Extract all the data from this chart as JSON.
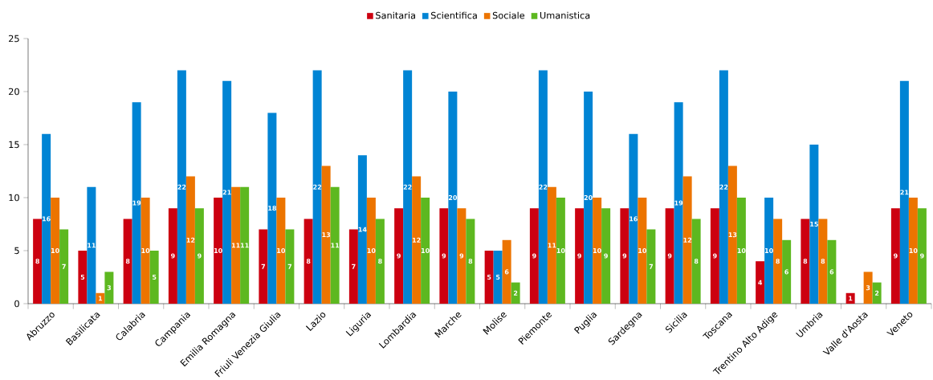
{
  "chart_data": {
    "type": "bar",
    "categories": [
      "Abruzzo",
      "Basilicata",
      "Calabria",
      "Campania",
      "Emilia Romagna",
      "Friuli Venezia Giulia",
      "Lazio",
      "Liguria",
      "Lombardia",
      "Marche",
      "Molise",
      "Piemonte",
      "Puglia",
      "Sardegna",
      "Sicilia",
      "Toscana",
      "Trentino Alto Adige",
      "Umbria",
      "Valle d'Aosta",
      "Veneto"
    ],
    "series": [
      {
        "name": "Sanitaria",
        "color": "#cc0010",
        "values": [
          8,
          5,
          8,
          9,
          10,
          7,
          8,
          7,
          9,
          9,
          5,
          9,
          9,
          9,
          9,
          9,
          4,
          8,
          1,
          9
        ]
      },
      {
        "name": "Scientifica",
        "color": "#0084d4",
        "values": [
          16,
          11,
          19,
          22,
          21,
          18,
          22,
          14,
          22,
          20,
          5,
          22,
          20,
          16,
          19,
          22,
          10,
          15,
          null,
          21
        ]
      },
      {
        "name": "Sociale",
        "color": "#ec7400",
        "values": [
          10,
          1,
          10,
          12,
          11,
          10,
          13,
          10,
          12,
          9,
          6,
          11,
          10,
          10,
          12,
          13,
          8,
          8,
          3,
          10
        ]
      },
      {
        "name": "Umanistica",
        "color": "#5db820",
        "values": [
          7,
          3,
          5,
          9,
          11,
          7,
          11,
          8,
          10,
          8,
          2,
          10,
          9,
          7,
          8,
          10,
          6,
          6,
          2,
          9
        ]
      }
    ],
    "ylim": [
      0,
      25
    ],
    "yticks": [
      0,
      5,
      10,
      15,
      20,
      25
    ],
    "grid": false,
    "legend": "top",
    "data_labels": true
  }
}
